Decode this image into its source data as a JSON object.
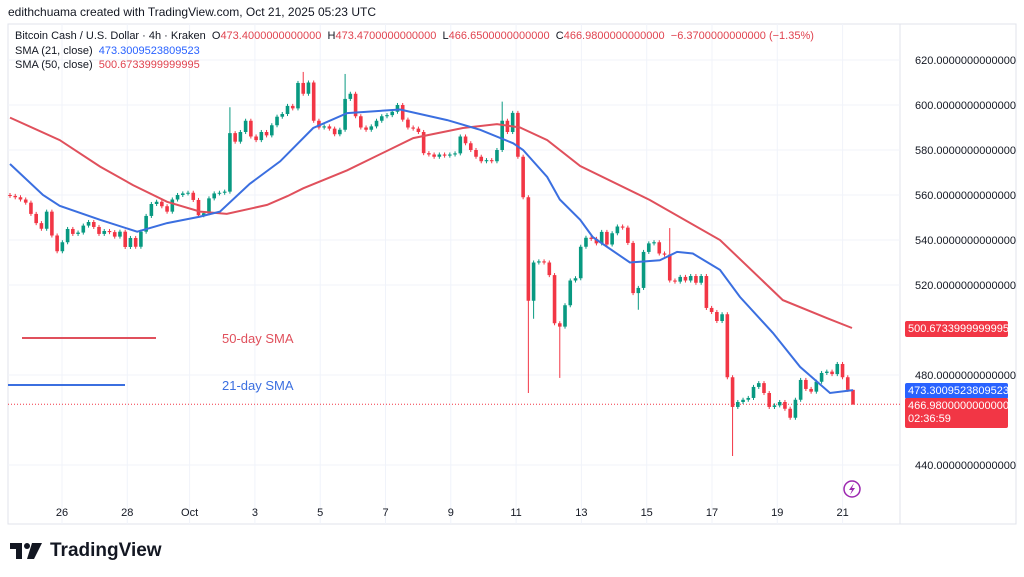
{
  "header": {
    "credit": "edithchuama created with TradingView.com, Oct 21, 2025 05:23 UTC"
  },
  "legend": {
    "symbol": "Bitcoin Cash / U.S. Dollar · 4h · Kraken",
    "o_label": "O",
    "o": "473.4000000000000",
    "h_label": "H",
    "h": "473.4700000000000",
    "l_label": "L",
    "l": "466.6500000000000",
    "c_label": "C",
    "c": "466.9800000000000",
    "change": "−6.3700000000000 (−1.35%)",
    "sma21_label": "SMA (21, close)",
    "sma21": "473.3009523809523",
    "sma50_label": "SMA (50, close)",
    "sma50": "500.6733999999995"
  },
  "price_labels": {
    "sma50": "500.6733999999995",
    "sma21": "473.3009523809523",
    "last": "466.9800000000000",
    "countdown": "02:36:59"
  },
  "annotations": {
    "sma50": "50-day SMA",
    "sma21": "21-day SMA"
  },
  "logo": {
    "text": "TradingView"
  },
  "colors": {
    "up": "#089981",
    "down": "#f23645",
    "sma21": "#3b6fe0",
    "sma50": "#e0505c"
  },
  "chart_data": {
    "type": "candlestick",
    "title": "Bitcoin Cash / U.S. Dollar · 4h · Kraken",
    "ylim": [
      425,
      632
    ],
    "yticks": [
      "620.0000000000000",
      "600.0000000000000",
      "580.0000000000000",
      "560.0000000000000",
      "540.0000000000000",
      "520.0000000000000",
      "480.0000000000000",
      "440.0000000000000"
    ],
    "ytick_values": [
      620,
      600,
      580,
      560,
      540,
      520,
      480,
      440
    ],
    "xticks": [
      "26",
      "28",
      "Oct",
      "3",
      "5",
      "7",
      "9",
      "11",
      "13",
      "15",
      "17",
      "19",
      "21"
    ],
    "first_open": 560,
    "closes": [
      559.6,
      559,
      558,
      556.6,
      551.6,
      547.5,
      545,
      552.6,
      542,
      535,
      539,
      544.9,
      542.7,
      543.3,
      546.4,
      548,
      545.8,
      542.7,
      544,
      543.5,
      541.5,
      543.7,
      536.9,
      540.9,
      537,
      543.7,
      550.7,
      556,
      557,
      555,
      552.6,
      558,
      560,
      560.7,
      561,
      557.8,
      551,
      551.9,
      558.5,
      560.7,
      561,
      561.5,
      587.5,
      583.7,
      588,
      593,
      586,
      584.4,
      588,
      586.5,
      591,
      594.8,
      596,
      599.6,
      598.5,
      609.8,
      605,
      610,
      593,
      590,
      590.5,
      589.5,
      587,
      589,
      602.7,
      605,
      595,
      590,
      589,
      590.5,
      593,
      595,
      595.5,
      597,
      600,
      593.5,
      590,
      589.5,
      588,
      578.6,
      578,
      577,
      578,
      577.5,
      578,
      578.5,
      586,
      583,
      580,
      577,
      575,
      575.5,
      575,
      580,
      593,
      588,
      596.5,
      577,
      559,
      513,
      530,
      530.5,
      530,
      524.4,
      503,
      501.5,
      511,
      522,
      523,
      537,
      541,
      540.5,
      538.5,
      543.6,
      538,
      543,
      546,
      545.5,
      538.7,
      516.4,
      518.7,
      534.7,
      538.5,
      539,
      534,
      533.5,
      522,
      521.5,
      523.6,
      522,
      524,
      521,
      524,
      509.8,
      508,
      504,
      507,
      479,
      465.8,
      468,
      469,
      469.8,
      474.7,
      476.4,
      472,
      465.8,
      466.5,
      468,
      465,
      461,
      469,
      477.8,
      473.8,
      472.6,
      477,
      480.9,
      481.5,
      480.4,
      484.9,
      479,
      473.4,
      466.98
    ],
    "wick_extremes": [
      {
        "i": 42,
        "high": 599
      },
      {
        "i": 56,
        "high": 614.7
      },
      {
        "i": 64,
        "high": 613.8
      },
      {
        "i": 94,
        "high": 601.5
      },
      {
        "i": 99,
        "low": 472
      },
      {
        "i": 100,
        "low": 505
      },
      {
        "i": 105,
        "low": 478.7
      },
      {
        "i": 120,
        "low": 509
      },
      {
        "i": 126,
        "high": 545.3
      },
      {
        "i": 138,
        "low": 444
      },
      {
        "i": 161,
        "high": 473.47,
        "low": 466.65
      }
    ],
    "sma21": [
      [
        0,
        573.8
      ],
      [
        6.3,
        560
      ],
      [
        9.5,
        555.2
      ],
      [
        17.2,
        549
      ],
      [
        24.3,
        543.7
      ],
      [
        30,
        547.5
      ],
      [
        36.3,
        550.4
      ],
      [
        40.1,
        552.6
      ],
      [
        45.8,
        565
      ],
      [
        51.6,
        575
      ],
      [
        57.9,
        589.8
      ],
      [
        64.4,
        596.4
      ],
      [
        74.5,
        598
      ],
      [
        83.5,
        593.3
      ],
      [
        89.8,
        589
      ],
      [
        96.1,
        583
      ],
      [
        98,
        580
      ],
      [
        102.6,
        568
      ],
      [
        105,
        558
      ],
      [
        108.9,
        549
      ],
      [
        111.3,
        541.3
      ],
      [
        118.4,
        530
      ],
      [
        124.1,
        531
      ],
      [
        127.4,
        534.7
      ],
      [
        130.4,
        534
      ],
      [
        135.6,
        526.7
      ],
      [
        139.4,
        514.7
      ],
      [
        145.7,
        498.7
      ],
      [
        150.9,
        483.6
      ],
      [
        156.6,
        472
      ],
      [
        161,
        473.3
      ]
    ],
    "sma50": [
      [
        0,
        594.4
      ],
      [
        9.5,
        584.4
      ],
      [
        17.2,
        572.6
      ],
      [
        23.5,
        564.4
      ],
      [
        30,
        557
      ],
      [
        36.3,
        552.6
      ],
      [
        41.4,
        551.6
      ],
      [
        49.1,
        555.6
      ],
      [
        53,
        559.5
      ],
      [
        56,
        563
      ],
      [
        64.4,
        571
      ],
      [
        77,
        585.3
      ],
      [
        86.5,
        589.8
      ],
      [
        93,
        591.5
      ],
      [
        97.4,
        590
      ],
      [
        102.6,
        584.4
      ],
      [
        108.9,
        572.9
      ],
      [
        122.2,
        557.8
      ],
      [
        135.6,
        540
      ],
      [
        147.6,
        513.3
      ],
      [
        156,
        505.3
      ],
      [
        160.8,
        500.9
      ]
    ],
    "last_price": 466.98
  }
}
